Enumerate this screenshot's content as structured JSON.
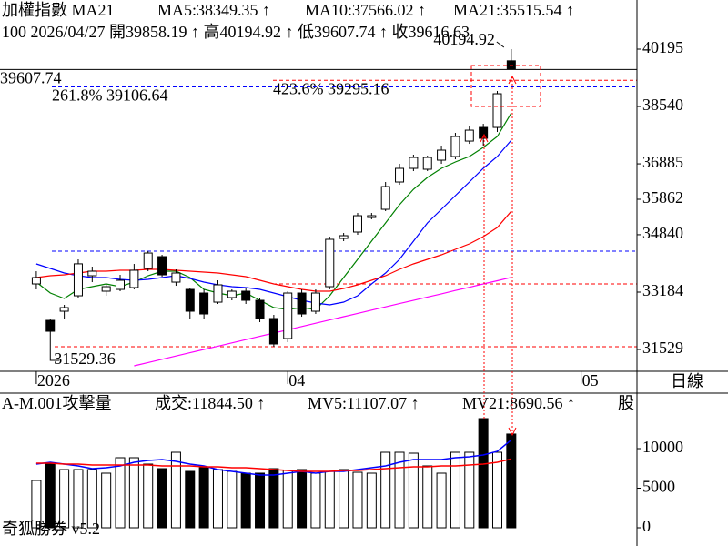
{
  "footer": "奇狐勝券 v5.2",
  "period": "日線",
  "chart_data": [
    {
      "type": "candlestick",
      "title": "加權指數 MA21",
      "info": "100 2026/04/27 開39858.19 ↑ 高40194.92 ↑ 低39607.74 ↑ 收39616.63",
      "categories": [
        null,
        null,
        null,
        null,
        null,
        null,
        null,
        null,
        null,
        null,
        null,
        null,
        null,
        null,
        null,
        null,
        null,
        null,
        null,
        null,
        null,
        null,
        null,
        null,
        null,
        null,
        null,
        null,
        null,
        null,
        null,
        null,
        null,
        null,
        null
      ],
      "xlim": [
        -2.6,
        43
      ],
      "xticks": [
        {
          "value": 0,
          "label": "2026"
        },
        {
          "value": 18,
          "label": "04"
        },
        {
          "value": 39,
          "label": "05"
        }
      ],
      "ylim": [
        30899,
        40458
      ],
      "yticks": [
        31529,
        33184,
        34840,
        35862,
        36885,
        38540,
        40195
      ],
      "up_color": "#ffffff",
      "down_color": "#000000",
      "open": [
        33420,
        32369,
        32632,
        33078,
        33656,
        33210,
        33262,
        33315,
        33866,
        34208,
        33472,
        33262,
        33157,
        32894,
        33026,
        33210,
        32947,
        32422,
        31844,
        33157,
        32632,
        33341,
        34733,
        34917,
        35337,
        35573,
        36361,
        36755,
        36729,
        36991,
        37096,
        37542,
        37936,
        37936,
        39858.19
      ],
      "high": [
        33787,
        32422,
        32816,
        34129,
        33919,
        33420,
        33682,
        33997,
        34365,
        34260,
        33840,
        33315,
        33262,
        33525,
        33262,
        33288,
        33000,
        32527,
        33210,
        33262,
        33262,
        34785,
        34890,
        35468,
        35468,
        36361,
        36886,
        37149,
        37122,
        37411,
        37779,
        37989,
        38041,
        38987,
        40194.92
      ],
      "low": [
        33262,
        31529.36,
        32422,
        33026,
        33472,
        33078,
        33210,
        33262,
        33787,
        33630,
        33367,
        32422,
        32422,
        32842,
        32947,
        32842,
        32317,
        31608,
        31739,
        32474,
        32553,
        33262,
        34654,
        34838,
        35284,
        35521,
        36282,
        36676,
        36676,
        36886,
        37017,
        37463,
        37411,
        37805,
        39607.74
      ],
      "close": [
        33604,
        32054,
        32737,
        34000,
        33787,
        33341,
        33525,
        33814,
        34312,
        33682,
        33735,
        32632,
        32553,
        33394,
        33210,
        32947,
        32422,
        31687,
        33157,
        32553,
        33157,
        34707,
        34812,
        35389,
        35389,
        36229,
        36755,
        37070,
        37070,
        37280,
        37674,
        37857,
        37621,
        38908,
        39616.63
      ],
      "series": [
        {
          "name": "MA5:38349.35 ↑",
          "color": "#008000",
          "values": [
            33472,
            33157,
            33000,
            33262,
            33341,
            33420,
            33341,
            33472,
            33656,
            33787,
            33787,
            33604,
            33262,
            33157,
            33078,
            33157,
            32947,
            32737,
            32684,
            32737,
            32684,
            33078,
            33604,
            34129,
            34654,
            35179,
            35704,
            36151,
            36492,
            36755,
            36939,
            37096,
            37359,
            37674,
            38349.35
          ]
        },
        {
          "name": "MA10:37566.02 ↑",
          "color": "#0000ff",
          "values": [
            33997,
            33866,
            33735,
            33656,
            33604,
            33604,
            33551,
            33525,
            33551,
            33604,
            33656,
            33577,
            33472,
            33393,
            33341,
            33315,
            33262,
            33157,
            33052,
            32947,
            32868,
            32816,
            32895,
            33078,
            33420,
            33735,
            34129,
            34654,
            35179,
            35573,
            35967,
            36361,
            36755,
            37096,
            37566.02
          ]
        },
        {
          "name": "MA21:35515.54 ↑",
          "color": "#ff0000",
          "values": [
            33604,
            33656,
            33682,
            33735,
            33787,
            33787,
            33814,
            33814,
            33840,
            33840,
            33814,
            33787,
            33761,
            33735,
            33682,
            33630,
            33525,
            33420,
            33341,
            33262,
            33210,
            33210,
            33288,
            33393,
            33525,
            33656,
            33840,
            33997,
            34129,
            34260,
            34418,
            34575,
            34785,
            35048,
            35515.54
          ]
        },
        {
          "color": "#ff00ff",
          "values": [
            null,
            null,
            null,
            null,
            null,
            null,
            null,
            31056,
            31151,
            31245,
            31340,
            31434,
            31529,
            31623,
            31718,
            31812,
            31907,
            32001,
            32096,
            32190,
            32285,
            32379,
            32474,
            32568,
            32663,
            32757,
            32852,
            32946,
            33041,
            33135,
            33230,
            33324,
            33419,
            33513,
            33608
          ]
        }
      ],
      "hlines": [
        {
          "value": 39607.74,
          "label": "39607.74",
          "color": "#000000",
          "dashed": false
        },
        {
          "value": 39295.16,
          "label": "423.6% 39295.16",
          "color": "#ff0000",
          "dashed": true
        },
        {
          "value": 39106.64,
          "label": "261.8% 39106.64",
          "color": "#0000ff",
          "dashed": true
        },
        {
          "value": 34365,
          "color": "#0000ff",
          "dashed": true
        },
        {
          "value": 33420,
          "color": "#ff0000",
          "dashed": true
        },
        {
          "value": 31608,
          "color": "#ff0000",
          "dashed": true
        }
      ]
    },
    {
      "type": "bar",
      "title": "A-M.001攻擊量",
      "ylim": [
        -2069,
        14023
      ],
      "yticks": [
        0,
        5000,
        10000
      ],
      "series": [
        {
          "name": "成交:11844.50 ↑",
          "color": "#008000",
          "type": "bar",
          "values": [
            5977,
            8046,
            7356,
            7356,
            7356,
            6897,
            8851,
            8851,
            8046,
            7471,
            9540,
            7126,
            7586,
            7356,
            7126,
            6897,
            6897,
            7471,
            7241,
            7356,
            6897,
            7126,
            7356,
            7011,
            6897,
            9540,
            9540,
            9425,
            7816,
            6897,
            9540,
            9540,
            13793,
            9540,
            11844.5
          ]
        },
        {
          "name": "MV5:11107.07 ↑",
          "color": "#0000ff",
          "type": "line",
          "values": [
            8046,
            8276,
            8046,
            7816,
            7471,
            7586,
            7816,
            8276,
            8506,
            8621,
            8391,
            8046,
            7816,
            7356,
            7126,
            6897,
            6667,
            6667,
            6897,
            7126,
            6897,
            7126,
            7126,
            7356,
            7586,
            7816,
            8276,
            8621,
            8621,
            8621,
            8851,
            8966,
            9195,
            9655,
            11107.07
          ]
        },
        {
          "name": "MV21:8690.56 ↑",
          "color": "#ff0000",
          "type": "line",
          "values": [
            8161,
            8161,
            8046,
            8046,
            7931,
            7931,
            7931,
            7931,
            7931,
            7816,
            7816,
            7816,
            7701,
            7701,
            7586,
            7586,
            7471,
            7356,
            7241,
            7126,
            7126,
            7126,
            7241,
            7241,
            7356,
            7471,
            7586,
            7701,
            7701,
            7816,
            7816,
            7931,
            8046,
            8276,
            8690.56
          ]
        }
      ],
      "legend_extra": {
        "text": "股",
        "color": "#ff00ff"
      }
    }
  ]
}
